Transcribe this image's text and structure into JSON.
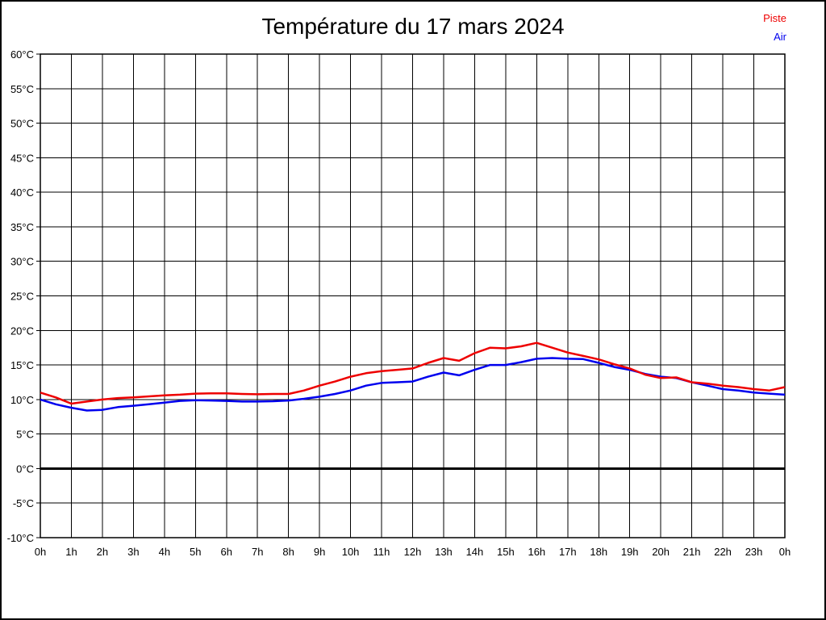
{
  "page": {
    "title": "Température du 17 mars 2024"
  },
  "legend": {
    "position": "top-right",
    "items": [
      {
        "label": "Piste",
        "color": "#ee0000"
      },
      {
        "label": "Air",
        "color": "#0000ee"
      }
    ]
  },
  "chart_data": {
    "type": "line",
    "title": "Température du 17 mars 2024",
    "background": "#ffffff",
    "grid": "on",
    "grid_color": "#000000",
    "frame_color": "#000000",
    "legend_position": "top-right",
    "xlabel": "",
    "ylabel": "",
    "x_unit": "hours",
    "x_min": 0,
    "x_max": 24,
    "x_tick_labels": [
      "0h",
      "1h",
      "2h",
      "3h",
      "4h",
      "5h",
      "6h",
      "7h",
      "8h",
      "9h",
      "10h",
      "11h",
      "12h",
      "13h",
      "14h",
      "15h",
      "16h",
      "17h",
      "18h",
      "19h",
      "20h",
      "21h",
      "22h",
      "23h",
      "0h"
    ],
    "ylim": [
      -10,
      60
    ],
    "y_tick_step": 5,
    "y_tick_suffix": "°C",
    "y_tick_labels": [
      "60°C",
      "55°C",
      "50°C",
      "45°C",
      "40°C",
      "35°C",
      "30°C",
      "25°C",
      "20°C",
      "15°C",
      "10°C",
      "5°C",
      "0°C",
      "-5°C",
      "-10°C"
    ],
    "zero_line": {
      "value": 0,
      "thick": true,
      "color": "#000000"
    },
    "x_step_hours": 0.5,
    "series": [
      {
        "name": "Piste",
        "color": "#ee0000",
        "values": [
          11.0,
          10.3,
          9.4,
          9.7,
          10.0,
          10.2,
          10.3,
          10.45,
          10.6,
          10.7,
          10.85,
          10.9,
          10.9,
          10.8,
          10.75,
          10.8,
          10.8,
          11.3,
          12.0,
          12.6,
          13.3,
          13.8,
          14.1,
          14.3,
          14.5,
          15.3,
          16.0,
          15.6,
          16.7,
          17.5,
          17.4,
          17.7,
          18.2,
          17.5,
          16.8,
          16.3,
          15.8,
          15.1,
          14.5,
          13.6,
          13.1,
          13.2,
          12.5,
          12.3,
          12.0,
          11.8,
          11.5,
          11.3,
          11.8
        ]
      },
      {
        "name": "Air",
        "color": "#0000ee",
        "values": [
          10.0,
          9.3,
          8.8,
          8.4,
          8.5,
          8.9,
          9.1,
          9.3,
          9.55,
          9.8,
          9.9,
          9.85,
          9.8,
          9.7,
          9.7,
          9.75,
          9.85,
          10.1,
          10.4,
          10.8,
          11.3,
          12.0,
          12.4,
          12.5,
          12.6,
          13.3,
          13.9,
          13.5,
          14.3,
          15.0,
          15.0,
          15.4,
          15.9,
          16.0,
          15.9,
          15.85,
          15.3,
          14.7,
          14.3,
          13.7,
          13.3,
          13.1,
          12.5,
          12.0,
          11.5,
          11.3,
          11.0,
          10.85,
          10.7
        ]
      }
    ]
  }
}
